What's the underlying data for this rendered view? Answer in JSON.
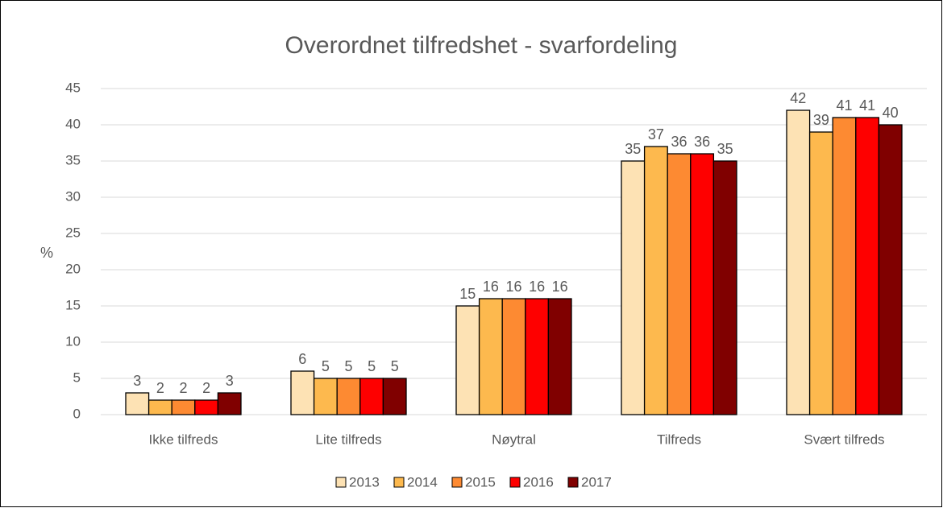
{
  "chart_data": {
    "type": "bar",
    "title": "Overordnet tilfredshet - svarfordeling",
    "ylabel": "%",
    "categories": [
      "Ikke tilfreds",
      "Lite tilfreds",
      "Nøytral",
      "Tilfreds",
      "Svært tilfreds"
    ],
    "series": [
      {
        "name": "2013",
        "color": "#fde2b4",
        "values": [
          3,
          6,
          15,
          35,
          42
        ]
      },
      {
        "name": "2014",
        "color": "#fdb94e",
        "values": [
          2,
          5,
          16,
          37,
          39
        ]
      },
      {
        "name": "2015",
        "color": "#fd8a32",
        "values": [
          2,
          5,
          16,
          36,
          41
        ]
      },
      {
        "name": "2016",
        "color": "#fe0000",
        "values": [
          2,
          5,
          16,
          36,
          41
        ]
      },
      {
        "name": "2017",
        "color": "#800000",
        "values": [
          3,
          5,
          16,
          35,
          40
        ]
      }
    ],
    "ylim": [
      0,
      45
    ],
    "yticks": [
      0,
      5,
      10,
      15,
      20,
      25,
      30,
      35,
      40,
      45
    ],
    "grid": true,
    "legend": "bottom"
  }
}
